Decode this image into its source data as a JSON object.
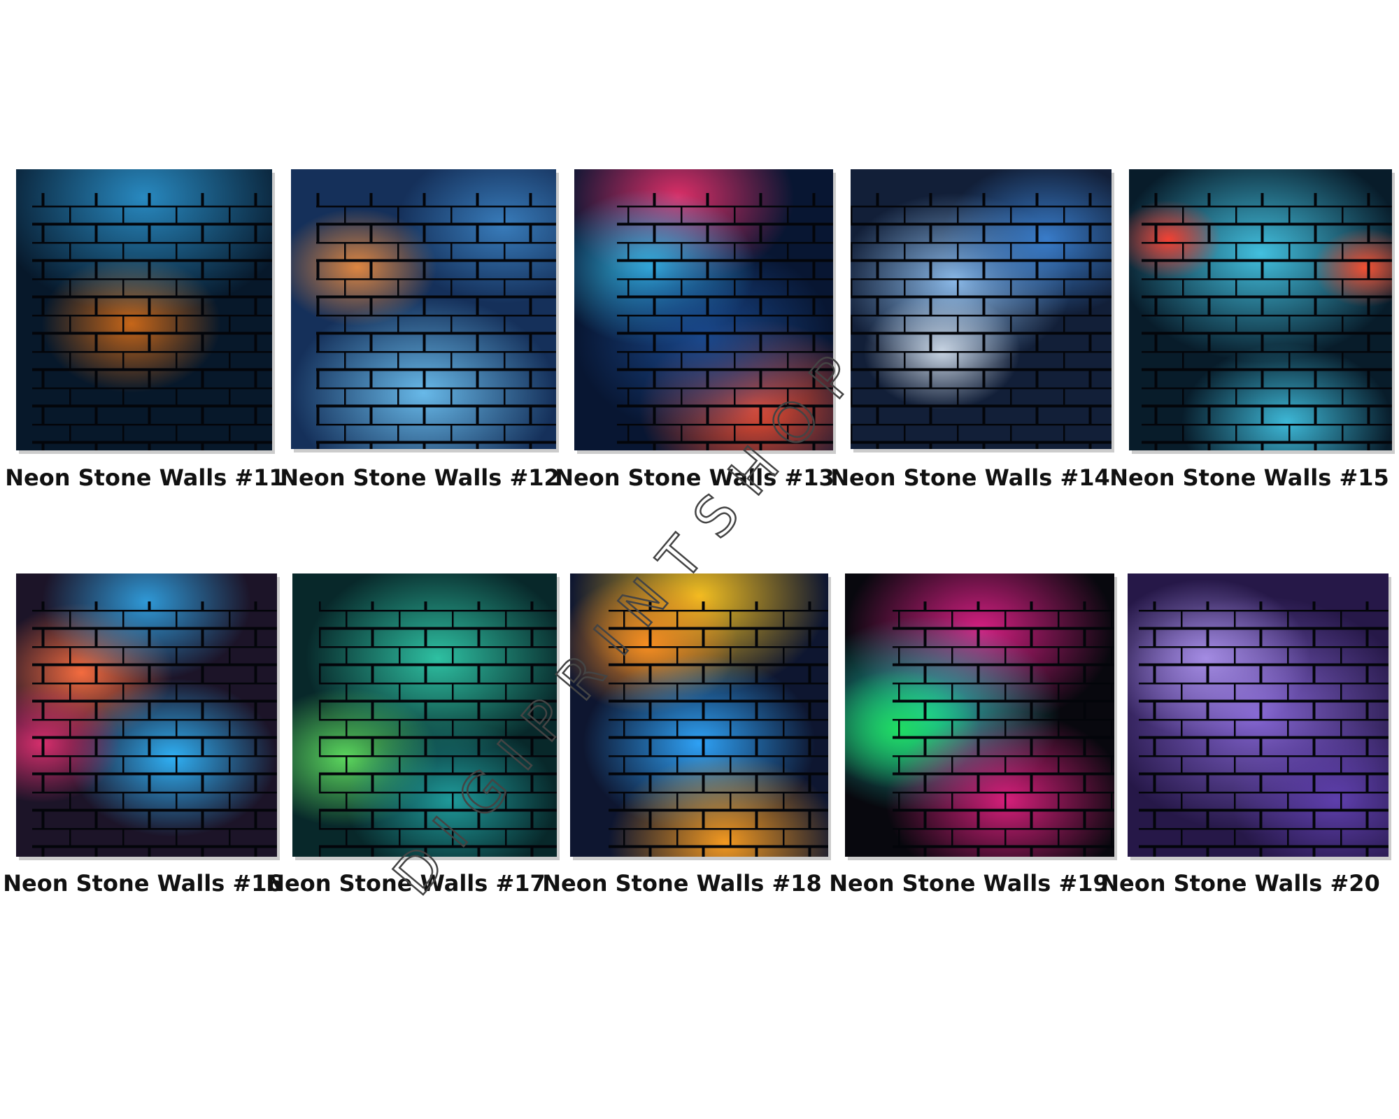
{
  "items": [
    "Neon Stone Walls #11",
    "Neon Stone Walls #12",
    "Neon Stone Walls #13",
    "Neon Stone Walls #14",
    "Neon Stone Walls #15",
    "Neon Stone Walls #16",
    "Neon Stone Walls #17",
    "Neon Stone Walls #18",
    "Neon Stone Walls #19",
    "Neon Stone Walls #20"
  ],
  "watermark": "DIGIPRINTSHOP"
}
